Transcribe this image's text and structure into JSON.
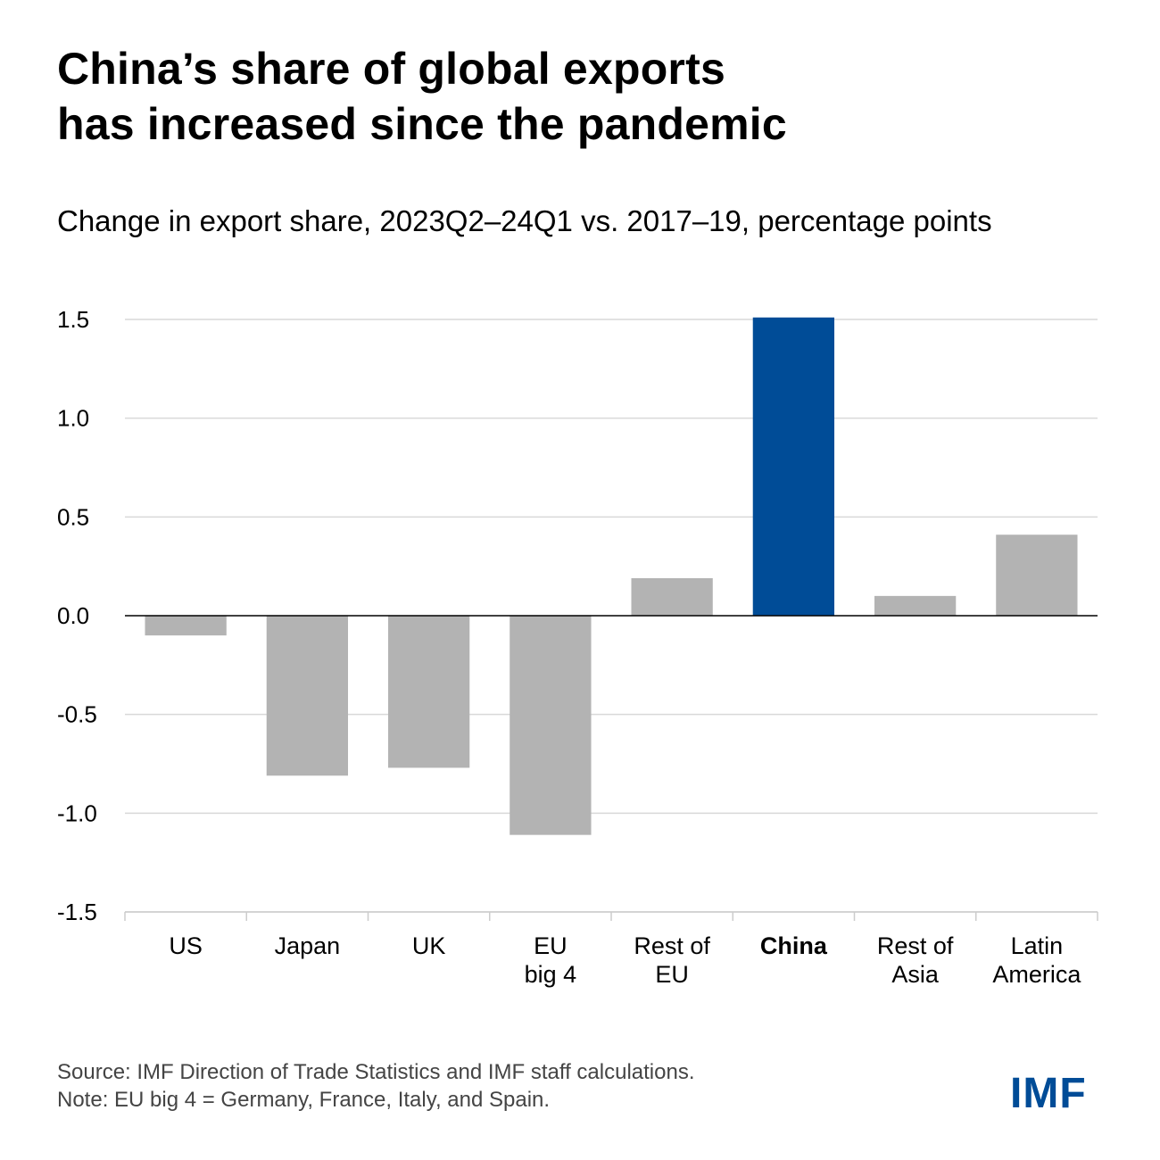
{
  "title": {
    "line1": "China’s share of global exports",
    "line2": "has increased since the pandemic"
  },
  "subtitle": "Change in export share, 2023Q2–24Q1 vs. 2017–19, percentage points",
  "chart_data": {
    "type": "bar",
    "categories": [
      [
        "US"
      ],
      [
        "Japan"
      ],
      [
        "UK"
      ],
      [
        "EU",
        "big 4"
      ],
      [
        "Rest of",
        "EU"
      ],
      [
        "China"
      ],
      [
        "Rest of",
        "Asia"
      ],
      [
        "Latin",
        "America"
      ]
    ],
    "values": [
      -0.1,
      -0.81,
      -0.77,
      -1.11,
      0.19,
      1.51,
      0.1,
      0.41
    ],
    "highlight_index": 5,
    "bar_color": "#b3b3b3",
    "highlight_color": "#004c97",
    "ylim": [
      -1.5,
      1.5
    ],
    "yticks": [
      1.5,
      1.0,
      0.5,
      0.0,
      -0.5,
      -1.0,
      -1.5
    ],
    "ytick_labels": [
      "1.5",
      "1.0",
      "0.5",
      "0.0",
      "-0.5",
      "-1.0",
      "-1.5"
    ],
    "grid": true,
    "xlabel": "",
    "ylabel": ""
  },
  "footer": {
    "source": "Source: IMF Direction of Trade Statistics and IMF staff calculations.",
    "note": "Note: EU big 4 = Germany, France, Italy, and Spain."
  },
  "logo": {
    "text": "IMF",
    "color": "#004c97"
  }
}
